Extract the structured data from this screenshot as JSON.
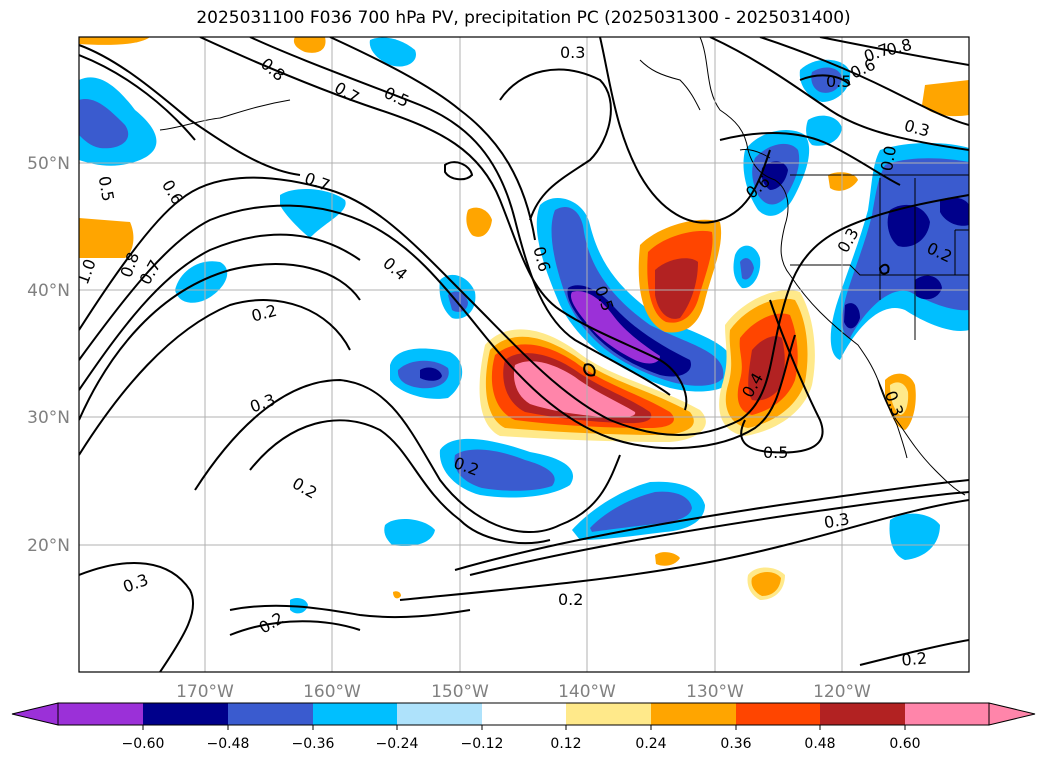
{
  "title": "2025031100 F036 700 hPa PV, precipitation PC (2025031300 - 2025031400)",
  "map": {
    "lat_labels": [
      "50°N",
      "40°N",
      "30°N",
      "20°N"
    ],
    "lon_labels": [
      "170°W",
      "160°W",
      "150°W",
      "140°W",
      "130°W",
      "120°W"
    ],
    "extent": {
      "lon": [
        -180,
        -110
      ],
      "lat": [
        10,
        60
      ]
    },
    "grid": true
  },
  "contour_labels": [
    "0.8",
    "0.7",
    "0.5",
    "0.3",
    "0.6",
    "0.7",
    "0.8",
    "0.5",
    "0.3",
    "0.0",
    "0.5",
    "0.6",
    "0.7",
    "1.0",
    "0.8",
    "0.7",
    "0.4",
    "0.6",
    "0.5",
    "0.6",
    "0.3",
    "0.2",
    "0.2",
    "0.3",
    "0.2",
    "0.2",
    "0.4",
    "0.5",
    "0.3",
    "0.3",
    "0.2",
    "0.3",
    "0.2",
    "0.2"
  ],
  "colorbar": {
    "colors": [
      "#9b30d8",
      "#00008b",
      "#3a5bcf",
      "#00bfff",
      "#aee2fb",
      "#ffffff",
      "#ffe98a",
      "#ffa500",
      "#ff4500",
      "#b22222",
      "#ff85aa"
    ],
    "ticks": [
      "−0.60",
      "−0.48",
      "−0.36",
      "−0.24",
      "−0.12",
      "0.12",
      "0.24",
      "0.36",
      "0.48",
      "0.60"
    ]
  }
}
